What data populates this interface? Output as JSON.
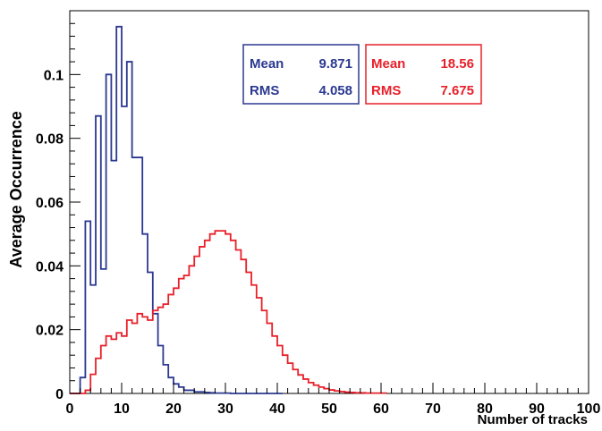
{
  "chart_data": {
    "type": "histogram",
    "title": "",
    "xlabel": "Number of tracks",
    "ylabel": "Average Occurrence",
    "xlim": [
      0,
      100
    ],
    "ylim": [
      0,
      0.12
    ],
    "bin_width": 1,
    "grid": false,
    "x_ticks": [
      "0",
      "10",
      "20",
      "30",
      "40",
      "50",
      "60",
      "70",
      "80",
      "90",
      "100"
    ],
    "y_ticks": [
      "0",
      "0.02",
      "0.04",
      "0.06",
      "0.08",
      "0.1"
    ],
    "series": [
      {
        "color": "#2b3990",
        "start": 0,
        "values": [
          0,
          0,
          0.005,
          0.054,
          0.034,
          0.087,
          0.039,
          0.1,
          0.073,
          0.115,
          0.09,
          0.104,
          0.074,
          0.074,
          0.05,
          0.038,
          0.025,
          0.015,
          0.009,
          0.005,
          0.003,
          0.002,
          0.001,
          0.001,
          0.0005,
          0.0005,
          0.0003,
          0.0002,
          0.0001,
          0.0001,
          0.0001,
          0,
          0,
          0,
          0,
          0,
          0,
          0,
          0,
          0,
          0
        ],
        "stats": {
          "mean_label": "Mean",
          "mean": "9.871",
          "rms_label": "RMS",
          "rms": "4.058"
        }
      },
      {
        "color": "#e8202a",
        "start": 0,
        "values": [
          0,
          0,
          0,
          0.001,
          0.006,
          0.011,
          0.015,
          0.018,
          0.017,
          0.019,
          0.018,
          0.023,
          0.022,
          0.025,
          0.024,
          0.023,
          0.026,
          0.027,
          0.028,
          0.031,
          0.033,
          0.036,
          0.037,
          0.04,
          0.043,
          0.046,
          0.048,
          0.05,
          0.051,
          0.051,
          0.05,
          0.048,
          0.045,
          0.042,
          0.038,
          0.034,
          0.03,
          0.026,
          0.022,
          0.018,
          0.015,
          0.012,
          0.0095,
          0.0075,
          0.0058,
          0.0045,
          0.0034,
          0.0026,
          0.002,
          0.0015,
          0.0011,
          0.0008,
          0.0006,
          0.0004,
          0.0003,
          0.0002,
          0.0002,
          0.0001,
          0.0001,
          0.0001,
          0.0001
        ],
        "stats": {
          "mean_label": "Mean",
          "mean": "18.56",
          "rms_label": "RMS",
          "rms": "7.675"
        }
      }
    ]
  }
}
